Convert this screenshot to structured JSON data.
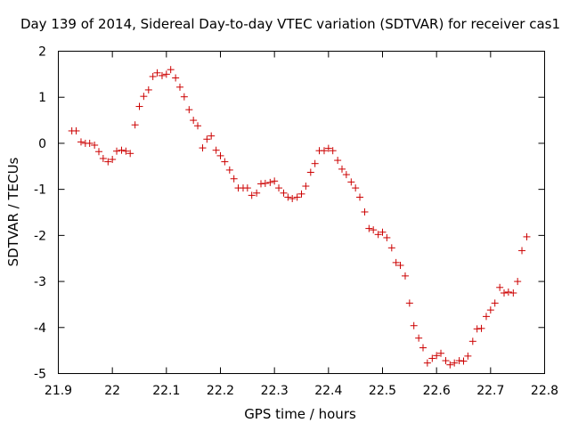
{
  "chart_data": {
    "type": "scatter",
    "title": "Day 139 of 2014, Sidereal Day-to-day VTEC variation (SDTVAR) for receiver cas1",
    "xlabel": "GPS time / hours",
    "ylabel": "SDTVAR / TECUs",
    "xlim": [
      21.9,
      22.8
    ],
    "ylim": [
      -5,
      2
    ],
    "grid": false,
    "legend": "none",
    "x_tick_values": [
      21.9,
      22.0,
      22.1,
      22.2,
      22.3,
      22.4,
      22.5,
      22.6,
      22.7,
      22.8
    ],
    "x_tick_labels": [
      "21.9",
      "22",
      "22.1",
      "22.2",
      "22.3",
      "22.4",
      "22.5",
      "22.6",
      "22.7",
      "22.8"
    ],
    "y_tick_values": [
      2,
      1,
      0,
      -1,
      -2,
      -3,
      -4,
      -5
    ],
    "y_tick_labels": [
      "2",
      "1",
      "0",
      "-1",
      "-2",
      "-3",
      "-4",
      "-5"
    ],
    "marker": "+",
    "marker_color": "#cc0000",
    "series": [
      {
        "name": "SDTVAR cas1",
        "x": [
          21.925,
          21.933,
          21.942,
          21.95,
          21.958,
          21.967,
          21.975,
          21.983,
          21.992,
          22.0,
          22.008,
          22.017,
          22.025,
          22.033,
          22.042,
          22.05,
          22.058,
          22.067,
          22.075,
          22.083,
          22.092,
          22.1,
          22.108,
          22.117,
          22.125,
          22.133,
          22.142,
          22.15,
          22.158,
          22.167,
          22.175,
          22.183,
          22.192,
          22.2,
          22.208,
          22.217,
          22.225,
          22.233,
          22.242,
          22.25,
          22.258,
          22.267,
          22.275,
          22.283,
          22.292,
          22.3,
          22.308,
          22.317,
          22.325,
          22.333,
          22.342,
          22.35,
          22.358,
          22.367,
          22.375,
          22.383,
          22.392,
          22.4,
          22.408,
          22.417,
          22.425,
          22.433,
          22.442,
          22.45,
          22.458,
          22.467,
          22.475,
          22.483,
          22.492,
          22.5,
          22.508,
          22.517,
          22.525,
          22.533,
          22.542,
          22.55,
          22.558,
          22.567,
          22.575,
          22.583,
          22.592,
          22.6,
          22.608,
          22.617,
          22.625,
          22.633,
          22.642,
          22.65,
          22.658,
          22.667,
          22.675,
          22.683,
          22.692,
          22.7,
          22.708,
          22.717,
          22.725,
          22.733,
          22.742,
          22.75,
          22.758,
          22.767
        ],
        "y": [
          0.27,
          0.27,
          0.03,
          0.0,
          0.0,
          -0.04,
          -0.18,
          -0.33,
          -0.4,
          -0.35,
          -0.17,
          -0.15,
          -0.17,
          -0.22,
          0.4,
          0.8,
          1.02,
          1.16,
          1.45,
          1.53,
          1.47,
          1.5,
          1.6,
          1.42,
          1.22,
          1.01,
          0.73,
          0.5,
          0.38,
          -0.1,
          0.09,
          0.16,
          -0.15,
          -0.27,
          -0.4,
          -0.58,
          -0.77,
          -0.97,
          -0.97,
          -0.97,
          -1.13,
          -1.08,
          -0.88,
          -0.87,
          -0.85,
          -0.82,
          -0.97,
          -1.08,
          -1.17,
          -1.2,
          -1.17,
          -1.1,
          -0.93,
          -0.63,
          -0.44,
          -0.16,
          -0.16,
          -0.11,
          -0.16,
          -0.37,
          -0.56,
          -0.68,
          -0.84,
          -0.97,
          -1.17,
          -1.49,
          -1.85,
          -1.88,
          -1.98,
          -1.93,
          -2.05,
          -2.27,
          -2.59,
          -2.65,
          -2.88,
          -3.47,
          -3.96,
          -4.23,
          -4.44,
          -4.77,
          -4.67,
          -4.61,
          -4.56,
          -4.72,
          -4.81,
          -4.77,
          -4.72,
          -4.73,
          -4.62,
          -4.3,
          -4.03,
          -4.02,
          -3.76,
          -3.62,
          -3.47,
          -3.13,
          -3.25,
          -3.23,
          -3.25,
          -3.0,
          -2.33,
          -2.03
        ]
      }
    ]
  }
}
